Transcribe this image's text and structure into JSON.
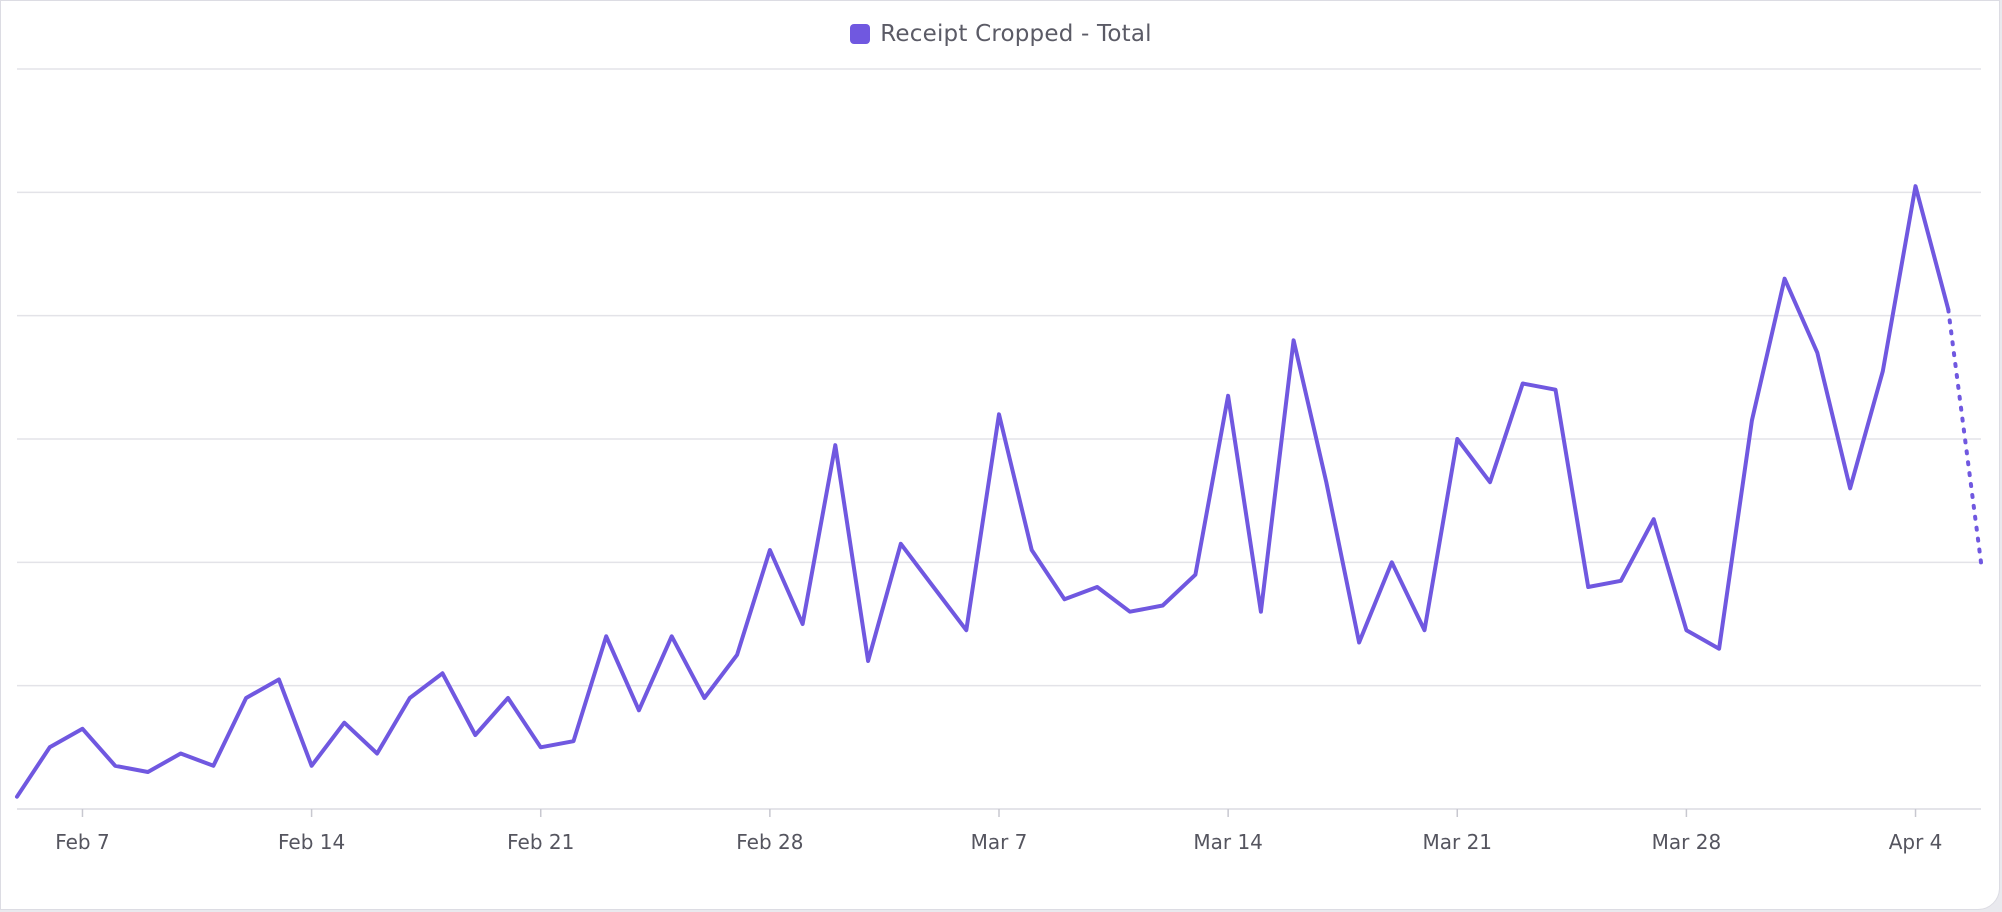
{
  "legend": {
    "label": "Receipt Cropped - Total",
    "color": "#7058e0"
  },
  "chart_data": {
    "type": "line",
    "title": "",
    "xlabel": "",
    "ylabel": "",
    "grid": true,
    "legend_position": "top-center",
    "ylim": [
      0,
      60
    ],
    "x_range": [
      "2025-02-05",
      "2025-04-06"
    ],
    "x_ticks": [
      {
        "date": "2025-02-07",
        "label": "Feb 7"
      },
      {
        "date": "2025-02-14",
        "label": "Feb 14"
      },
      {
        "date": "2025-02-21",
        "label": "Feb 21"
      },
      {
        "date": "2025-02-28",
        "label": "Feb 28"
      },
      {
        "date": "2025-03-07",
        "label": "Mar 7"
      },
      {
        "date": "2025-03-14",
        "label": "Mar 14"
      },
      {
        "date": "2025-03-21",
        "label": "Mar 21"
      },
      {
        "date": "2025-03-28",
        "label": "Mar 28"
      },
      {
        "date": "2025-04-04",
        "label": "Apr 4"
      }
    ],
    "series": [
      {
        "name": "Receipt Cropped - Total",
        "color": "#7058e0",
        "x": [
          "2025-02-05",
          "2025-02-06",
          "2025-02-07",
          "2025-02-08",
          "2025-02-09",
          "2025-02-10",
          "2025-02-11",
          "2025-02-12",
          "2025-02-13",
          "2025-02-14",
          "2025-02-15",
          "2025-02-16",
          "2025-02-17",
          "2025-02-18",
          "2025-02-19",
          "2025-02-20",
          "2025-02-21",
          "2025-02-22",
          "2025-02-23",
          "2025-02-24",
          "2025-02-25",
          "2025-02-26",
          "2025-02-27",
          "2025-02-28",
          "2025-03-01",
          "2025-03-02",
          "2025-03-03",
          "2025-03-04",
          "2025-03-05",
          "2025-03-06",
          "2025-03-07",
          "2025-03-08",
          "2025-03-09",
          "2025-03-10",
          "2025-03-11",
          "2025-03-12",
          "2025-03-13",
          "2025-03-14",
          "2025-03-15",
          "2025-03-16",
          "2025-03-17",
          "2025-03-18",
          "2025-03-19",
          "2025-03-20",
          "2025-03-21",
          "2025-03-22",
          "2025-03-23",
          "2025-03-24",
          "2025-03-25",
          "2025-03-26",
          "2025-03-27",
          "2025-03-28",
          "2025-03-29",
          "2025-03-30",
          "2025-03-31",
          "2025-04-01",
          "2025-04-02",
          "2025-04-03",
          "2025-04-04",
          "2025-04-05"
        ],
        "values": [
          1,
          5,
          6.5,
          3.5,
          3,
          4.5,
          3.5,
          9,
          10.5,
          3.5,
          7,
          4.5,
          9,
          11,
          6,
          9,
          5,
          5.5,
          14,
          8,
          14,
          9,
          12.5,
          21,
          15,
          29.5,
          12,
          21.5,
          18,
          14.5,
          32,
          21,
          17,
          18,
          16,
          16.5,
          19,
          33.5,
          16,
          38,
          26.5,
          13.5,
          20,
          14.5,
          30,
          26.5,
          34.5,
          34,
          18,
          18.5,
          23.5,
          14.5,
          13,
          31.5,
          43,
          37,
          26,
          35.5,
          50.5,
          40.5
        ],
        "projected": {
          "x": [
            "2025-04-05",
            "2025-04-06"
          ],
          "values": [
            40.5,
            20
          ]
        }
      }
    ]
  }
}
